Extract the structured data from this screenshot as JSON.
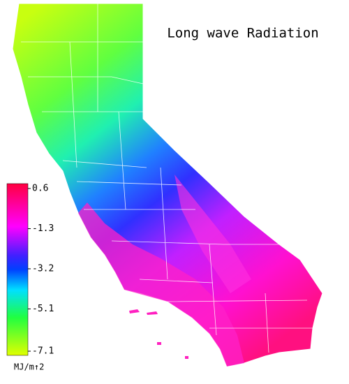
{
  "title": "Long wave Radiation",
  "colorbar": {
    "ticks": [
      0.6,
      -1.3,
      -3.2,
      -5.1,
      -7.1
    ],
    "lim": [
      -7.1,
      0.6
    ],
    "unit": "MJ/m↑2"
  }
}
